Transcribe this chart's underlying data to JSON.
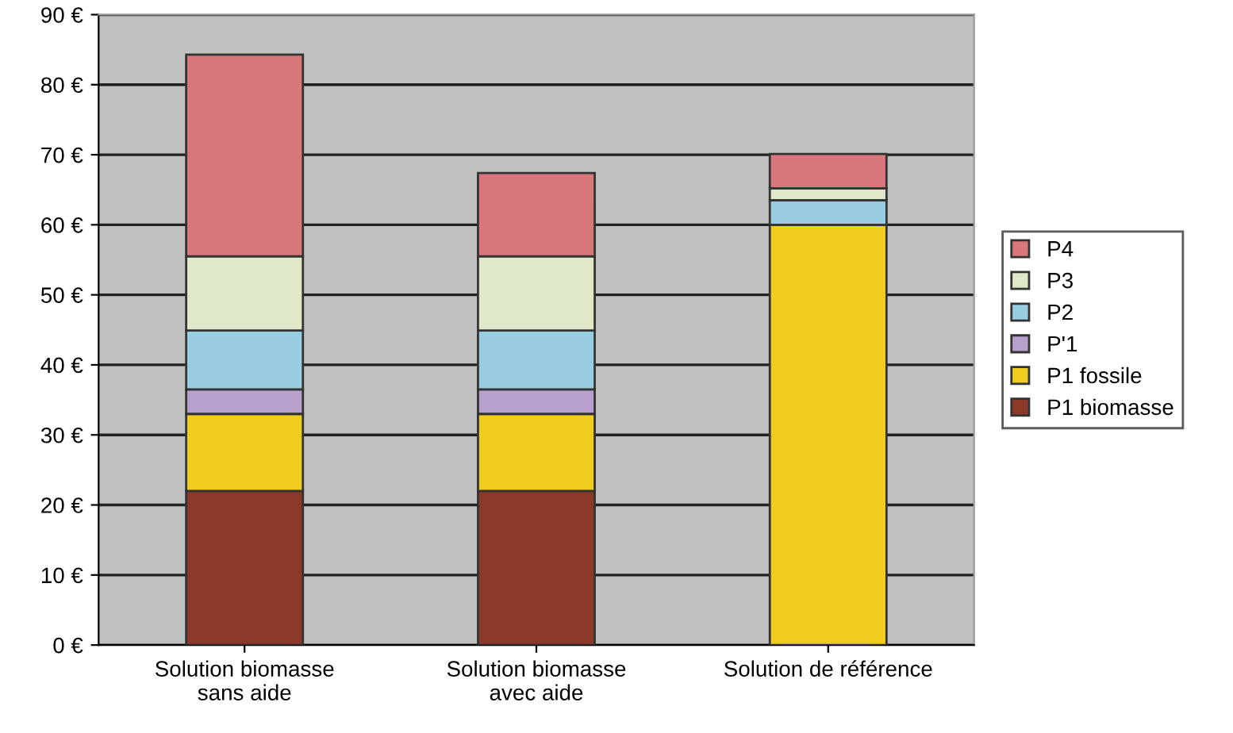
{
  "chart_data": {
    "type": "bar",
    "stacked": true,
    "categories": [
      "Solution biomasse\nsans aide",
      "Solution biomasse\navec aide",
      "Solution de référence"
    ],
    "series": [
      {
        "name": "P1 biomasse",
        "color": "#8b3a2a",
        "values": [
          22,
          22,
          0
        ]
      },
      {
        "name": "P1 fossile",
        "color": "#f0cc20",
        "values": [
          11,
          11,
          60
        ]
      },
      {
        "name": "P'1",
        "color": "#b8a0cc",
        "values": [
          3.5,
          3.5,
          0
        ]
      },
      {
        "name": "P2",
        "color": "#98cce0",
        "values": [
          8.4,
          8.4,
          3.5
        ]
      },
      {
        "name": "P3",
        "color": "#dfe8c8",
        "values": [
          10.6,
          10.6,
          1.7
        ]
      },
      {
        "name": "P4",
        "color": "#d8787c",
        "values": [
          28.8,
          11.9,
          4.9
        ]
      }
    ],
    "ylim": [
      0,
      90
    ],
    "yticks": [
      {
        "value": 0,
        "label": "0 €"
      },
      {
        "value": 10,
        "label": "10 €"
      },
      {
        "value": 20,
        "label": "20 €"
      },
      {
        "value": 30,
        "label": "30 €"
      },
      {
        "value": 40,
        "label": "40 €"
      },
      {
        "value": 50,
        "label": "50 €"
      },
      {
        "value": 60,
        "label": "60 €"
      },
      {
        "value": 70,
        "label": "70 €"
      },
      {
        "value": 80,
        "label": "80 €"
      },
      {
        "value": 90,
        "label": "90 €"
      }
    ],
    "grid": "y",
    "legend": "right"
  }
}
